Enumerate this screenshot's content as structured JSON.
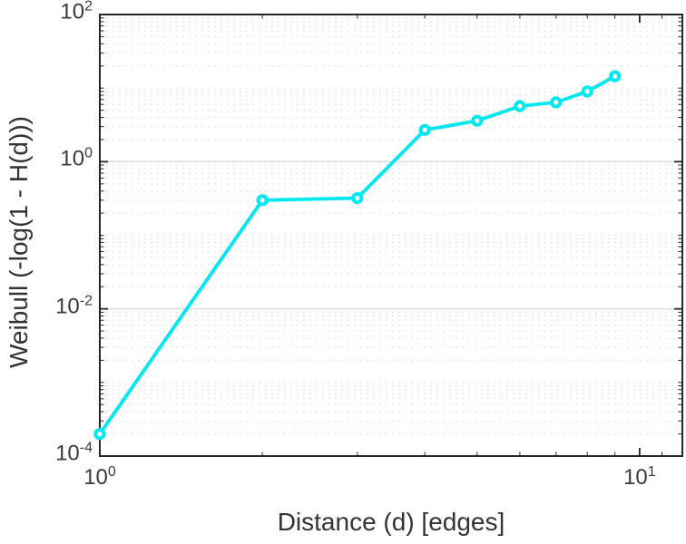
{
  "chart_data": {
    "type": "line",
    "xlabel": "Distance (d) [edges]",
    "ylabel": "Weibull (-log(1 - H(d)))",
    "x_scale": "log",
    "y_scale": "log",
    "xlim": [
      1,
      12
    ],
    "ylim": [
      0.0001,
      100
    ],
    "x": [
      1,
      2,
      3,
      4,
      5,
      6,
      7,
      8,
      9
    ],
    "y": [
      0.0002,
      0.3,
      0.32,
      2.7,
      3.6,
      5.7,
      6.4,
      9.0,
      14.5
    ],
    "marker": "open-circle",
    "legend": "none",
    "grid": {
      "y_major": "solid",
      "y_minor": "dotted",
      "x_grid": "off"
    },
    "x_ticks": [
      {
        "base": "10",
        "exp": "0",
        "value": 1
      },
      {
        "base": "10",
        "exp": "1",
        "value": 10
      }
    ],
    "x_minor_tick_values": [
      2,
      3,
      4,
      5,
      6,
      7,
      8,
      9,
      11
    ],
    "y_ticks": [
      {
        "base": "10",
        "exp": "2",
        "value": 100
      },
      {
        "base": "10",
        "exp": "0",
        "value": 1
      },
      {
        "base": "10",
        "exp": "-2",
        "value": 0.01
      },
      {
        "base": "10",
        "exp": "-4",
        "value": 0.0001
      }
    ],
    "colors": {
      "line": "#00e7ef",
      "marker_fill": "#ffffff",
      "axis": "#262626",
      "grid_major": "#d9d9d9",
      "grid_minor": "#dcdcdc",
      "text": "#3a3a3a"
    }
  }
}
